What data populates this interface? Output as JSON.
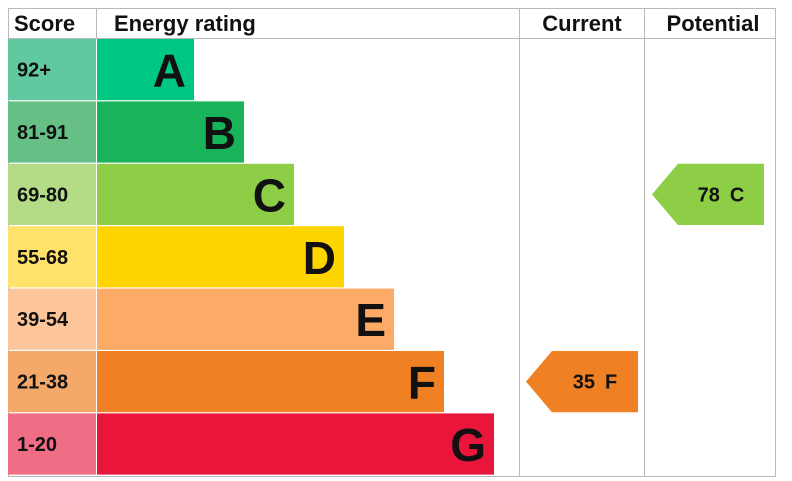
{
  "headers": {
    "score": "Score",
    "rating": "Energy rating",
    "current": "Current",
    "potential": "Potential"
  },
  "chart_data": {
    "type": "bar",
    "title": "",
    "bands": [
      {
        "letter": "A",
        "range": "92+",
        "color": "#00c781",
        "score_bg": "#61c9a0"
      },
      {
        "letter": "B",
        "range": "81-91",
        "color": "#19b459",
        "score_bg": "#66c086"
      },
      {
        "letter": "C",
        "range": "69-80",
        "color": "#8dce46",
        "score_bg": "#b4dc87"
      },
      {
        "letter": "D",
        "range": "55-68",
        "color": "#ffd500",
        "score_bg": "#ffe26a"
      },
      {
        "letter": "E",
        "range": "39-54",
        "color": "#fcaa65",
        "score_bg": "#fdc69a"
      },
      {
        "letter": "F",
        "range": "21-38",
        "color": "#ef8023",
        "score_bg": "#f4a86a"
      },
      {
        "letter": "G",
        "range": "1-20",
        "color": "#e9153b",
        "score_bg": "#ef6d85"
      }
    ],
    "current": {
      "value": 35,
      "band": "F",
      "label": "35",
      "letter": "F",
      "color": "#ef8023"
    },
    "potential": {
      "value": 78,
      "band": "C",
      "label": "78",
      "letter": "C",
      "color": "#8dce46"
    }
  }
}
